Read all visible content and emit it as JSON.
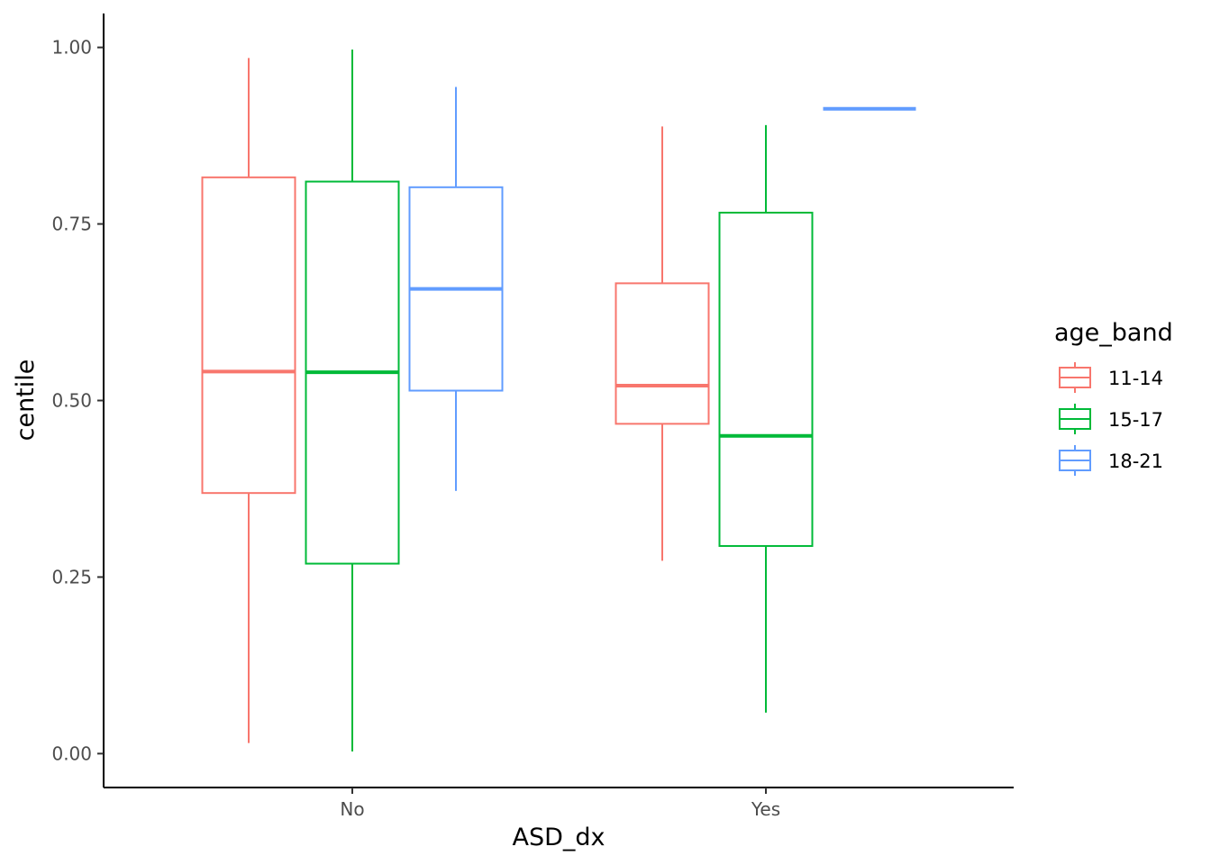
{
  "chart_data": {
    "type": "boxplot",
    "xlabel": "ASD_dx",
    "ylabel": "centile",
    "categories": [
      "No",
      "Yes"
    ],
    "ylim": [
      -0.048,
      1.048
    ],
    "yticks": [
      0.0,
      0.25,
      0.5,
      0.75,
      1.0
    ],
    "ytick_labels": [
      "0.00",
      "0.25",
      "0.50",
      "0.75",
      "1.00"
    ],
    "grid": false,
    "legend": {
      "title": "age_band",
      "position": "right",
      "entries": [
        "11-14",
        "15-17",
        "18-21"
      ]
    },
    "series": [
      {
        "name": "11-14",
        "color": "#F8766D",
        "boxes": [
          {
            "category": "No",
            "whisker_low": 0.015,
            "q1": 0.369,
            "median": 0.541,
            "q3": 0.816,
            "whisker_high": 0.985
          },
          {
            "category": "Yes",
            "whisker_low": 0.273,
            "q1": 0.467,
            "median": 0.521,
            "q3": 0.666,
            "whisker_high": 0.888
          }
        ]
      },
      {
        "name": "15-17",
        "color": "#00BA38",
        "boxes": [
          {
            "category": "No",
            "whisker_low": 0.003,
            "q1": 0.269,
            "median": 0.54,
            "q3": 0.81,
            "whisker_high": 0.997
          },
          {
            "category": "Yes",
            "whisker_low": 0.058,
            "q1": 0.294,
            "median": 0.45,
            "q3": 0.766,
            "whisker_high": 0.89
          }
        ]
      },
      {
        "name": "18-21",
        "color": "#619CFF",
        "boxes": [
          {
            "category": "No",
            "whisker_low": 0.372,
            "q1": 0.514,
            "median": 0.658,
            "q3": 0.802,
            "whisker_high": 0.944
          },
          {
            "category": "Yes",
            "whisker_low": 0.913,
            "q1": 0.913,
            "median": 0.913,
            "q3": 0.913,
            "whisker_high": 0.913
          }
        ]
      }
    ]
  }
}
